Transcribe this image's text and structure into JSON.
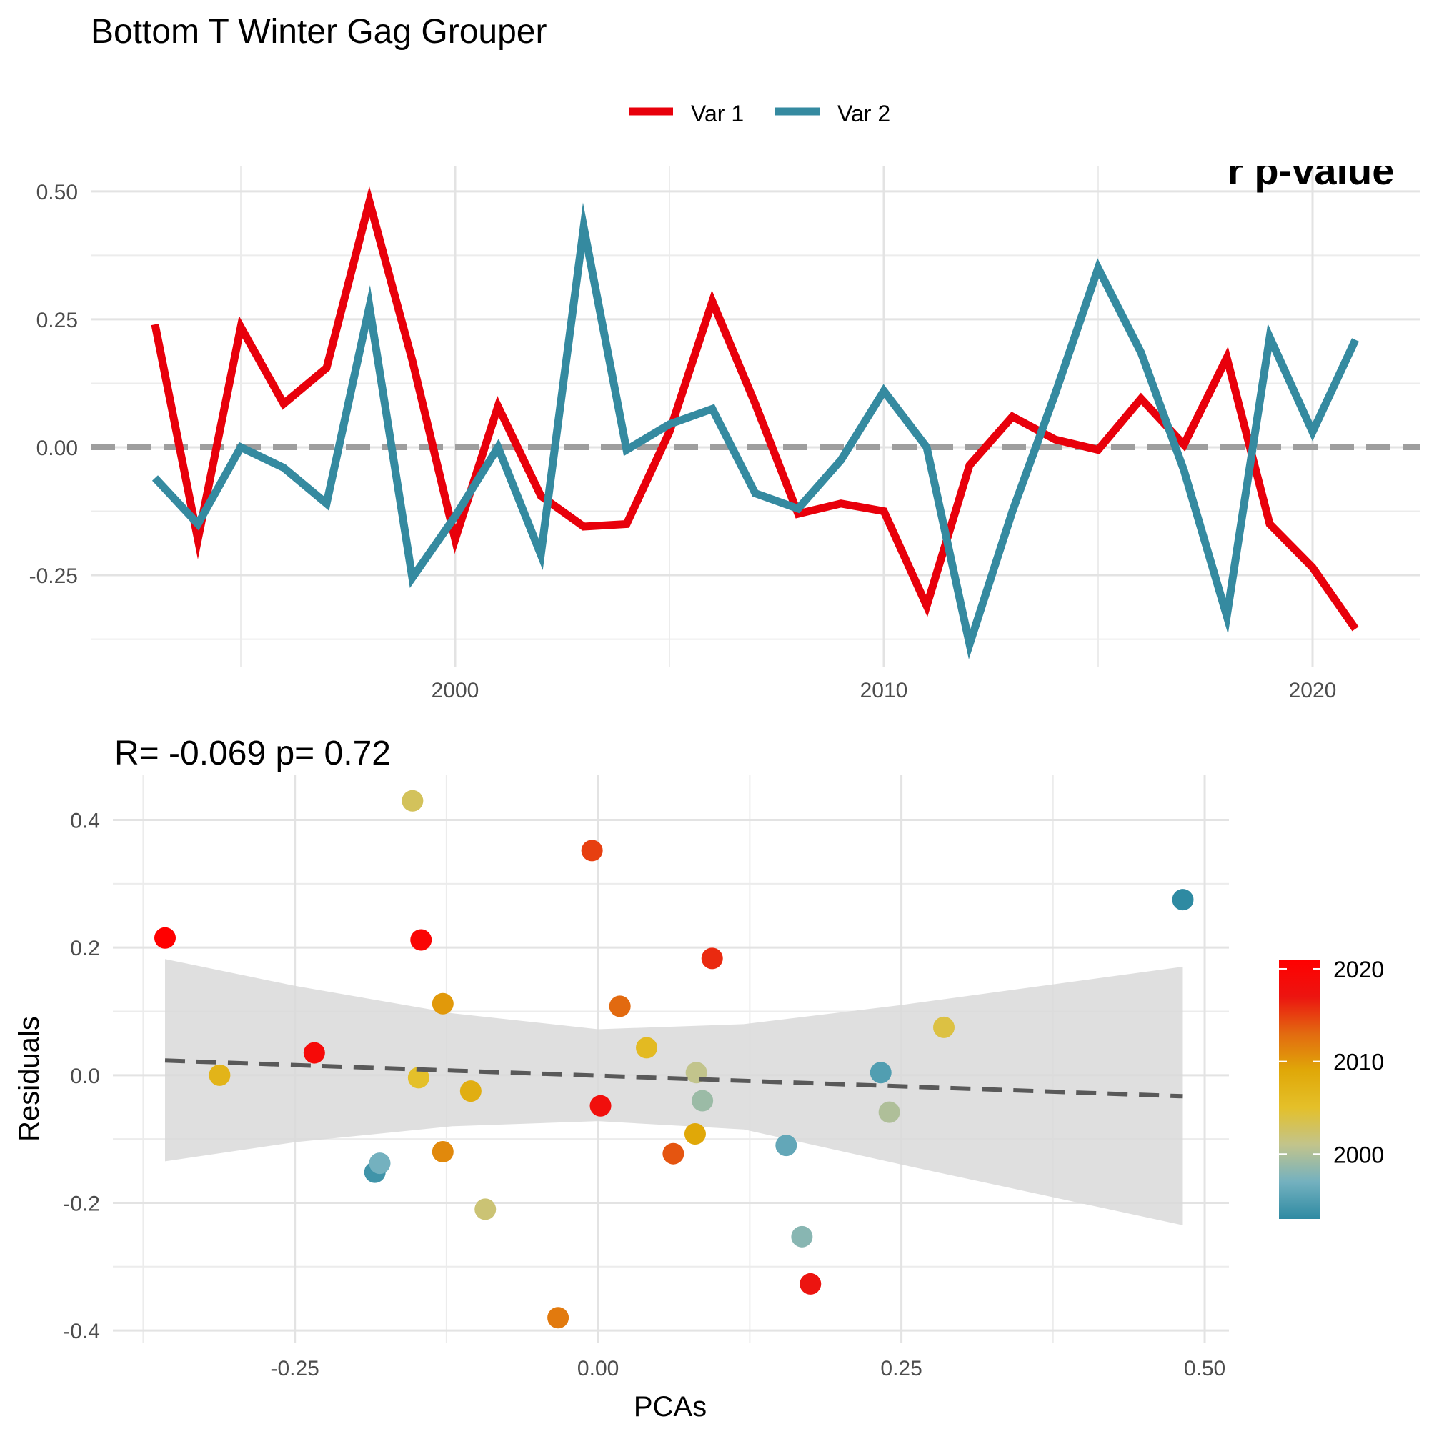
{
  "title": "Bottom T Winter Gag Grouper",
  "legend": {
    "items": [
      {
        "label": "Var 1",
        "color": "#e8000b"
      },
      {
        "label": "Var 2",
        "color": "#358aa0"
      }
    ],
    "placement": "top"
  },
  "colorbar": {
    "ticks": [
      "2020",
      "2010",
      "2000"
    ],
    "range": [
      1993,
      2021
    ],
    "palette": [
      "#2e8aa2",
      "#74b1bf",
      "#c2c48c",
      "#e4c02a",
      "#e0a808",
      "#e26a10",
      "#ec1410",
      "#ff0000"
    ]
  },
  "stats_label": "R= -0.069  p= 0.72",
  "clipped_annotation": "r p-value",
  "chart_data": [
    {
      "type": "line",
      "title": "",
      "xlabel": "",
      "ylabel": "",
      "x": [
        1993,
        1994,
        1995,
        1996,
        1997,
        1998,
        1999,
        2000,
        2001,
        2002,
        2003,
        2004,
        2005,
        2006,
        2007,
        2008,
        2009,
        2010,
        2011,
        2012,
        2013,
        2014,
        2015,
        2016,
        2017,
        2018,
        2019,
        2020,
        2021
      ],
      "series": [
        {
          "name": "Var 1",
          "color": "#e8000b",
          "values": [
            0.24,
            -0.18,
            0.235,
            0.085,
            0.155,
            0.48,
            0.17,
            -0.18,
            0.08,
            -0.095,
            -0.155,
            -0.15,
            0.03,
            0.285,
            0.085,
            -0.13,
            -0.11,
            -0.125,
            -0.31,
            -0.035,
            0.06,
            0.015,
            -0.005,
            0.095,
            0.005,
            0.175,
            -0.15,
            -0.235,
            -0.355
          ]
        },
        {
          "name": "Var 2",
          "color": "#358aa0",
          "values": [
            -0.06,
            -0.15,
            0.0,
            -0.04,
            -0.11,
            0.275,
            -0.255,
            -0.135,
            0.0,
            -0.21,
            0.43,
            -0.005,
            0.045,
            0.075,
            -0.09,
            -0.12,
            -0.025,
            0.11,
            0.0,
            -0.385,
            -0.125,
            0.105,
            0.35,
            0.185,
            -0.045,
            -0.33,
            0.215,
            0.03,
            0.21
          ]
        }
      ],
      "hline": 0,
      "xlim": [
        1991.5,
        2022.5
      ],
      "ylim": [
        -0.43,
        0.55
      ],
      "x_ticks": [
        2000,
        2010,
        2020
      ],
      "x_minor": [
        1995,
        2005,
        2015
      ],
      "y_ticks": [
        0.5,
        0.25,
        0.0,
        -0.25
      ],
      "y_tick_labels": [
        "0.50",
        "0.25",
        "0.00",
        "-0.25"
      ],
      "grid": true
    },
    {
      "type": "scatter",
      "title": "R= -0.069  p= 0.72",
      "xlabel": "PCAs",
      "ylabel": "Residuals",
      "xlim": [
        -0.4,
        0.52
      ],
      "ylim": [
        -0.42,
        0.47
      ],
      "x_ticks": [
        -0.25,
        0.0,
        0.25,
        0.5
      ],
      "x_tick_labels": [
        "-0.25",
        "0.00",
        "0.25",
        "0.50"
      ],
      "y_ticks": [
        0.4,
        0.2,
        0.0,
        -0.2,
        -0.4
      ],
      "y_tick_labels": [
        "0.4",
        "0.2",
        "0.0",
        "-0.2",
        "-0.4"
      ],
      "points": [
        {
          "x": -0.357,
          "y": 0.215,
          "year": 2021
        },
        {
          "x": -0.312,
          "y": 0.0,
          "year": 2007
        },
        {
          "x": -0.234,
          "y": 0.035,
          "year": 2019
        },
        {
          "x": -0.184,
          "y": -0.152,
          "year": 1994
        },
        {
          "x": -0.18,
          "y": -0.138,
          "year": 1997
        },
        {
          "x": -0.153,
          "y": 0.43,
          "year": 2003
        },
        {
          "x": -0.148,
          "y": -0.004,
          "year": 2005
        },
        {
          "x": -0.146,
          "y": 0.212,
          "year": 2020
        },
        {
          "x": -0.128,
          "y": 0.112,
          "year": 2010
        },
        {
          "x": -0.128,
          "y": -0.12,
          "year": 2011
        },
        {
          "x": -0.105,
          "y": -0.025,
          "year": 2008
        },
        {
          "x": -0.093,
          "y": -0.21,
          "year": 2002
        },
        {
          "x": -0.033,
          "y": -0.38,
          "year": 2012
        },
        {
          "x": -0.005,
          "y": 0.352,
          "year": 2015
        },
        {
          "x": 0.002,
          "y": -0.048,
          "year": 2018
        },
        {
          "x": 0.018,
          "y": 0.108,
          "year": 2013
        },
        {
          "x": 0.04,
          "y": 0.043,
          "year": 2006
        },
        {
          "x": 0.062,
          "y": -0.123,
          "year": 2014
        },
        {
          "x": 0.08,
          "y": -0.092,
          "year": 2009
        },
        {
          "x": 0.081,
          "y": 0.004,
          "year": 2001
        },
        {
          "x": 0.086,
          "y": -0.04,
          "year": 1999
        },
        {
          "x": 0.094,
          "y": 0.183,
          "year": 2016
        },
        {
          "x": 0.155,
          "y": -0.11,
          "year": 1996
        },
        {
          "x": 0.168,
          "y": -0.253,
          "year": 1998
        },
        {
          "x": 0.175,
          "y": -0.327,
          "year": 2017
        },
        {
          "x": 0.233,
          "y": 0.004,
          "year": 1995
        },
        {
          "x": 0.24,
          "y": -0.058,
          "year": 2000
        },
        {
          "x": 0.285,
          "y": 0.075,
          "year": 2004
        },
        {
          "x": 0.482,
          "y": 0.275,
          "year": 1993
        }
      ],
      "trend": {
        "x": [
          -0.357,
          0.482
        ],
        "y": [
          0.023,
          -0.033
        ],
        "style": "dashed",
        "color": "#595959"
      },
      "confidence_band": {
        "x": [
          -0.357,
          -0.25,
          -0.12,
          0.0,
          0.12,
          0.25,
          0.482
        ],
        "lower": [
          -0.135,
          -0.105,
          -0.08,
          -0.072,
          -0.085,
          -0.14,
          -0.235
        ],
        "upper": [
          0.182,
          0.14,
          0.097,
          0.072,
          0.08,
          0.11,
          0.17
        ],
        "color": "#d9d9d9"
      }
    }
  ]
}
